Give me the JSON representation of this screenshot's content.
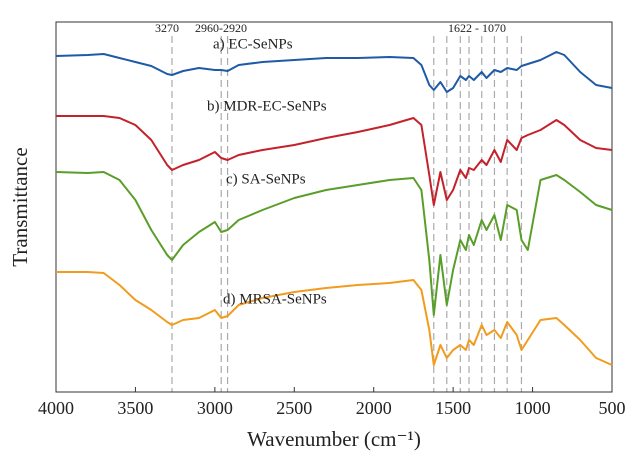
{
  "chart_data": {
    "type": "line",
    "xlabel": "Wavenumber (cm⁻¹)",
    "ylabel": "Transmittance",
    "xlim": [
      4000,
      500
    ],
    "xticks": [
      4000,
      3500,
      3000,
      2500,
      2000,
      1500,
      1000,
      500
    ],
    "ylim": [
      0,
      370
    ],
    "ref_lines": [
      3270,
      2960,
      2920,
      1622,
      1540,
      1455,
      1400,
      1320,
      1240,
      1160,
      1070
    ],
    "annotations": [
      "3270",
      "2960-2920",
      "1622 - 1070"
    ],
    "x": [
      4000,
      3800,
      3700,
      3600,
      3500,
      3400,
      3300,
      3270,
      3200,
      3100,
      3000,
      2960,
      2920,
      2850,
      2700,
      2500,
      2300,
      2100,
      1900,
      1750,
      1700,
      1650,
      1622,
      1580,
      1540,
      1500,
      1455,
      1420,
      1400,
      1370,
      1320,
      1290,
      1240,
      1200,
      1160,
      1100,
      1070,
      1030,
      950,
      850,
      800,
      700,
      600,
      500
    ],
    "series": [
      {
        "name": "a) EC-SeNPs",
        "color": "#1f5aa6",
        "values": [
          336,
          337,
          338,
          334,
          330,
          326,
          318,
          317,
          321,
          324,
          322,
          322,
          321,
          327,
          330,
          332,
          334,
          334,
          335,
          334,
          327,
          307,
          302,
          310,
          300,
          304,
          316,
          312,
          316,
          312,
          320,
          314,
          322,
          320,
          324,
          322,
          326,
          328,
          332,
          340,
          337,
          320,
          307,
          304
        ]
      },
      {
        "name": "b) MDR-EC-SeNPs",
        "color": "#c4222b",
        "values": [
          276,
          276,
          276,
          274,
          267,
          252,
          227,
          222,
          227,
          232,
          240,
          234,
          232,
          237,
          242,
          247,
          254,
          260,
          267,
          274,
          267,
          217,
          187,
          220,
          192,
          202,
          222,
          214,
          224,
          222,
          232,
          227,
          242,
          230,
          252,
          242,
          254,
          257,
          262,
          272,
          267,
          252,
          244,
          242
        ]
      },
      {
        "name": "c) SA-SeNPs",
        "color": "#5a9e2a",
        "values": [
          220,
          219,
          220,
          212,
          192,
          162,
          137,
          132,
          147,
          160,
          170,
          160,
          162,
          172,
          182,
          194,
          202,
          207,
          212,
          214,
          202,
          132,
          77,
          137,
          87,
          122,
          152,
          142,
          157,
          147,
          172,
          162,
          177,
          152,
          187,
          182,
          152,
          142,
          212,
          217,
          212,
          200,
          187,
          182
        ]
      },
      {
        "name": "d) MRSA-SeNPs",
        "color": "#f29c1f",
        "values": [
          120,
          120,
          119,
          107,
          92,
          82,
          70,
          67,
          72,
          74,
          82,
          74,
          76,
          87,
          94,
          100,
          104,
          107,
          109,
          112,
          102,
          62,
          27,
          47,
          34,
          42,
          47,
          42,
          52,
          47,
          67,
          57,
          62,
          54,
          70,
          57,
          42,
          52,
          72,
          74,
          67,
          52,
          34,
          27
        ]
      }
    ]
  }
}
